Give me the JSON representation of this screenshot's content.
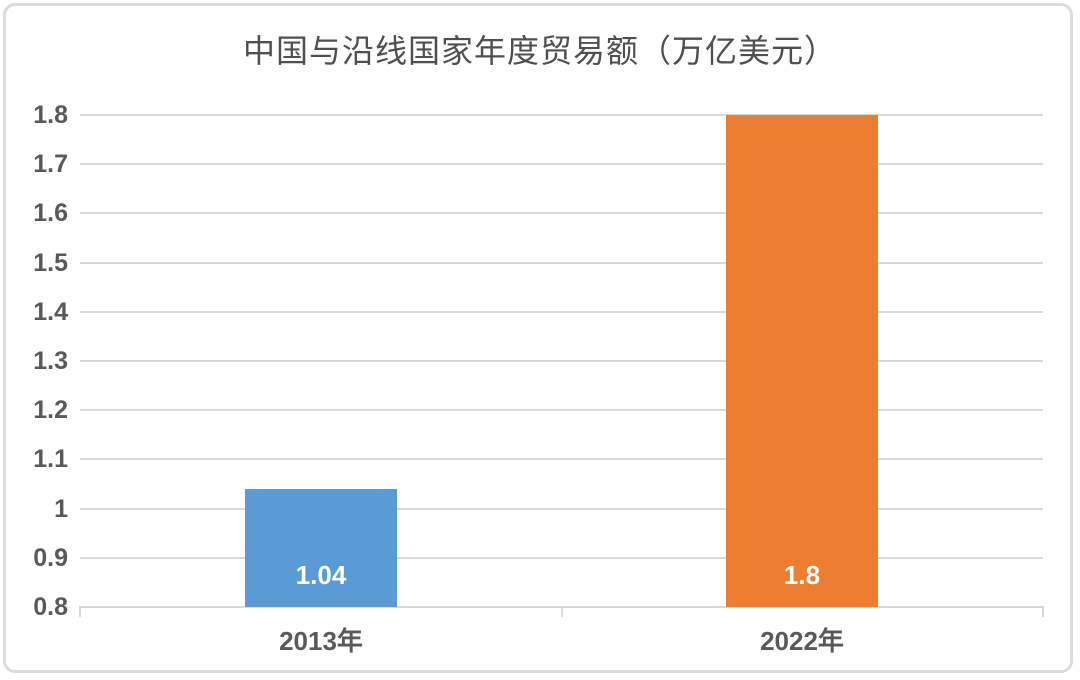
{
  "page": {
    "background_color": "#ffffff",
    "frame_border_color": "#dcdcdc"
  },
  "chart_data": {
    "type": "bar",
    "title": "中国与沿线国家年度贸易额（万亿美元）",
    "categories": [
      "2013年",
      "2022年"
    ],
    "values": [
      1.04,
      1.8
    ],
    "value_labels": [
      "1.04",
      "1.8"
    ],
    "bar_colors": [
      "#5b9bd5",
      "#ed7d31"
    ],
    "label_text_color": "#ffffff",
    "xlabel": "",
    "ylabel": "",
    "ylim": [
      0.8,
      1.8
    ],
    "ytick_step": 0.1,
    "yticks": [
      {
        "value": 1.8,
        "label": "1.8"
      },
      {
        "value": 1.7,
        "label": "1.7"
      },
      {
        "value": 1.6,
        "label": "1.6"
      },
      {
        "value": 1.5,
        "label": "1.5"
      },
      {
        "value": 1.4,
        "label": "1.4"
      },
      {
        "value": 1.3,
        "label": "1.3"
      },
      {
        "value": 1.2,
        "label": "1.2"
      },
      {
        "value": 1.1,
        "label": "1.1"
      },
      {
        "value": 1.0,
        "label": "1"
      },
      {
        "value": 0.9,
        "label": "0.9"
      },
      {
        "value": 0.8,
        "label": "0.8"
      }
    ],
    "grid": true,
    "gridline_color": "#d9d9d9",
    "axis_text_color": "#595959",
    "title_color": "#4f4f4f",
    "legend": "none"
  }
}
